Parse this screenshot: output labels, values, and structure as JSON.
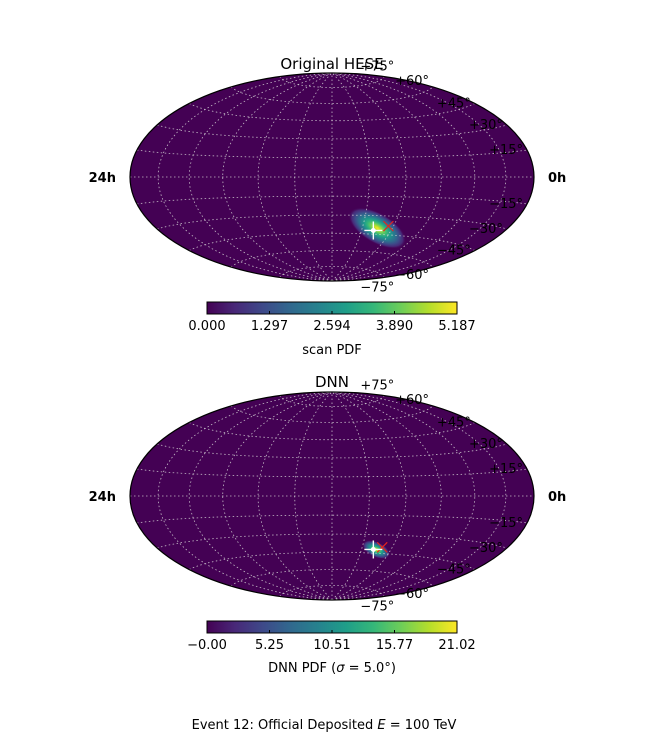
{
  "caption": {
    "prefix": "Event 12:  Official Deposited ",
    "var": "E",
    "mid": " = 100 TeV"
  },
  "ra_labels": [
    "24h",
    "0h"
  ],
  "dec_labels": [
    "+75°",
    "+60°",
    "+45°",
    "+30°",
    "+15°",
    "−15°",
    "−30°",
    "−45°",
    "−60°",
    "−75°"
  ],
  "colors": {
    "viridis": [
      "#440154",
      "#482878",
      "#3e4989",
      "#31688e",
      "#26828e",
      "#1f9e89",
      "#35b779",
      "#6ece58",
      "#b5de2b",
      "#fde725"
    ],
    "grid": "#d9d9d9",
    "marker_true": "#ffffff",
    "marker_best": "#e8231b"
  },
  "chart_data": [
    {
      "type": "heatmap",
      "projection": "hammer (all-sky)",
      "title": "Original HESE",
      "grid": true,
      "colorbar": {
        "label": "scan PDF",
        "ticks": [
          "0.000",
          "1.297",
          "2.594",
          "3.890",
          "5.187"
        ],
        "range": [
          0.0,
          5.187
        ]
      },
      "hotspot": {
        "ra_deg": 225,
        "dec_deg": -40,
        "peak": 5.187,
        "sigma_ra_deg": 11,
        "sigma_dec_deg": 5,
        "tilt_deg": 30
      },
      "markers": {
        "true_direction": {
          "ra_deg": 222,
          "dec_deg": -42
        },
        "best_fit": {
          "ra_deg": 235,
          "dec_deg": -38
        }
      }
    },
    {
      "type": "heatmap",
      "projection": "hammer (all-sky)",
      "title": "DNN",
      "grid": true,
      "colorbar": {
        "label_prefix": "DNN PDF (",
        "label_sym": "σ",
        "label_suffix": " = 5.0°)",
        "ticks": [
          "−0.00",
          "5.25",
          "10.51",
          "15.77",
          "21.02"
        ],
        "range": [
          0.0,
          21.02
        ]
      },
      "hotspot": {
        "ra_deg": 225,
        "dec_deg": -42,
        "peak": 21.02,
        "sigma_ra_deg": 5,
        "sigma_dec_deg": 2.5,
        "tilt_deg": 25
      },
      "markers": {
        "true_direction": {
          "ra_deg": 222,
          "dec_deg": -42
        },
        "best_fit": {
          "ra_deg": 230,
          "dec_deg": -40
        }
      }
    }
  ]
}
